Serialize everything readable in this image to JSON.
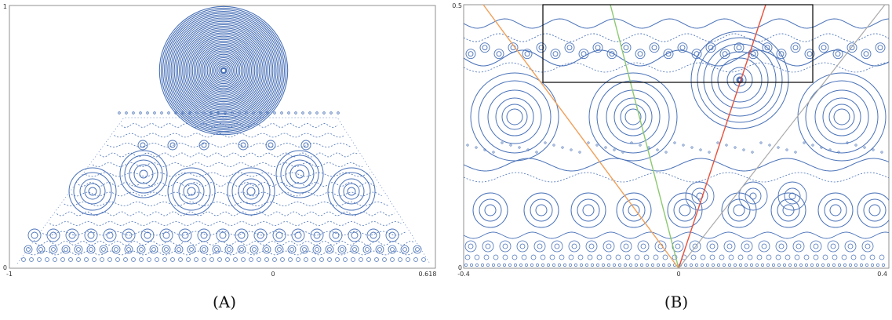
{
  "panels": [
    {
      "id": "a",
      "caption": "(A)",
      "x_ticks": [
        "-1",
        "0",
        "0.618"
      ],
      "y_ticks": [
        "0",
        "1"
      ],
      "xlim": [
        -1,
        0.618
      ],
      "ylim": [
        0,
        1
      ]
    },
    {
      "id": "b",
      "caption": "(B)",
      "x_ticks": [
        "-0.4",
        "0",
        "0.4"
      ],
      "y_ticks": [
        "0",
        "0.5"
      ],
      "xlim": [
        -0.4,
        0.4
      ],
      "ylim": [
        0,
        0.5
      ]
    }
  ],
  "colors": {
    "orbit": "#4a72b8",
    "frame": "#777777",
    "orange_line": "#f0a05a",
    "green_line": "#8cc870",
    "red_line": "#e8503c",
    "inset_box": "#000000"
  },
  "chart_data": [
    {
      "type": "scatter",
      "title": "",
      "x_ticks": [
        -1,
        0,
        0.618
      ],
      "y_ticks": [
        0,
        1
      ],
      "xlim": [
        -1,
        0.618
      ],
      "ylim": [
        0,
        1
      ],
      "grid": false,
      "series": [
        {
          "kind": "invariant_circles",
          "centers": [
            {
              "x": -0.31,
              "y": 0.79,
              "r": 0.13,
              "rings": 14
            },
            {
              "x": -0.49,
              "y": 0.35,
              "r": 0.065,
              "rings": 4
            },
            {
              "x": -0.26,
              "y": 0.35,
              "r": 0.065,
              "rings": 4
            },
            {
              "x": -0.04,
              "y": 0.35,
              "r": 0.065,
              "rings": 4
            },
            {
              "x": 0.2,
              "y": 0.35,
              "r": 0.065,
              "rings": 4
            },
            {
              "x": -0.81,
              "y": 0.35,
              "r": 0.065,
              "rings": 4
            },
            {
              "x": -0.52,
              "y": 0.46,
              "r": 0.06,
              "rings": 4
            },
            {
              "x": 0.11,
              "y": 0.46,
              "r": 0.06,
              "rings": 4
            }
          ]
        }
      ]
    },
    {
      "type": "scatter",
      "title": "",
      "x_ticks": [
        -0.4,
        0,
        0.4
      ],
      "y_ticks": [
        0,
        0.5
      ],
      "xlim": [
        -0.4,
        0.4
      ],
      "ylim": [
        0,
        0.5
      ],
      "grid": false,
      "series": [
        {
          "kind": "invariant_circles",
          "centers": [
            {
              "x": -0.3,
              "y": 0.27,
              "r": 0.06,
              "rings": 4
            },
            {
              "x": -0.06,
              "y": 0.27,
              "r": 0.06,
              "rings": 4
            },
            {
              "x": 0.09,
              "y": 0.41,
              "r": 0.055,
              "rings": 5
            },
            {
              "x": 0.3,
              "y": 0.27,
              "r": 0.06,
              "rings": 4
            }
          ]
        },
        {
          "kind": "line",
          "color": "orange",
          "x": [
            -0.36,
            0
          ],
          "y": [
            0.5,
            0
          ]
        },
        {
          "kind": "line",
          "color": "green",
          "x": [
            -0.11,
            0
          ],
          "y": [
            0.5,
            0
          ]
        },
        {
          "kind": "line",
          "color": "red",
          "x": [
            0,
            0.13
          ],
          "y": [
            0,
            0.5
          ]
        },
        {
          "kind": "line",
          "color": "gray",
          "x": [
            0,
            0.38
          ],
          "y": [
            0,
            0.5
          ]
        }
      ],
      "inset_box": {
        "x": [
          -0.24,
          0.16
        ],
        "y": [
          0.34,
          0.5
        ]
      }
    }
  ]
}
